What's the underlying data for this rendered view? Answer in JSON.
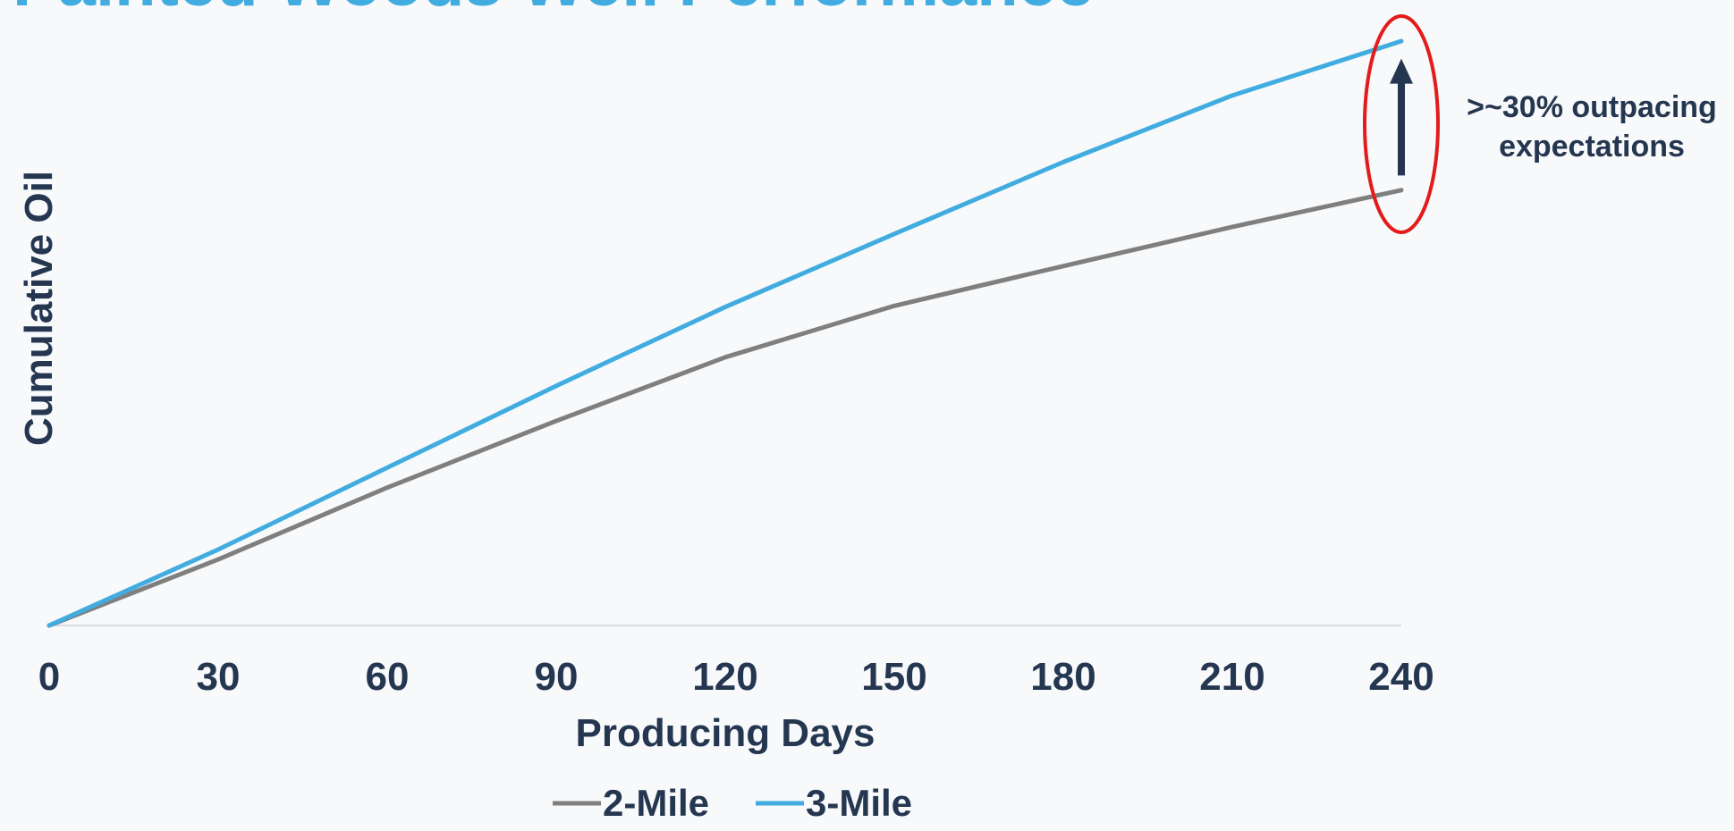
{
  "chart_data": {
    "type": "line",
    "title": "Painted Woods Well Performance",
    "xlabel": "Producing Days",
    "ylabel": "Cumulative Oil",
    "x": [
      0,
      30,
      60,
      90,
      120,
      150,
      180,
      210,
      240
    ],
    "xticks": [
      "0",
      "30",
      "60",
      "90",
      "120",
      "150",
      "180",
      "210",
      "240"
    ],
    "xlim": [
      0,
      240
    ],
    "ylim": [
      0,
      100
    ],
    "grid": false,
    "legend_position": "bottom-center",
    "series": [
      {
        "name": "2-Mile",
        "color": "#7f7f7f",
        "values": [
          0,
          11.3,
          23.6,
          35.0,
          45.9,
          54.7,
          61.5,
          68.2,
          74.5
        ]
      },
      {
        "name": "3-Mile",
        "color": "#41acdf",
        "values": [
          0,
          13.0,
          27.0,
          41.0,
          54.5,
          67.0,
          79.3,
          90.7,
          100.0
        ]
      }
    ],
    "annotation": {
      "line1": ">~30% outpacing",
      "line2": "expectations",
      "ellipse_color": "#e31b1b",
      "arrow_color": "#253650",
      "arrow_x": 240,
      "arrow_from": 77.0,
      "arrow_to": 97.0
    }
  },
  "colors": {
    "title": "#41acdf",
    "text": "#253650",
    "axis": "#d0d4d8",
    "background": "#f7f9fb"
  }
}
